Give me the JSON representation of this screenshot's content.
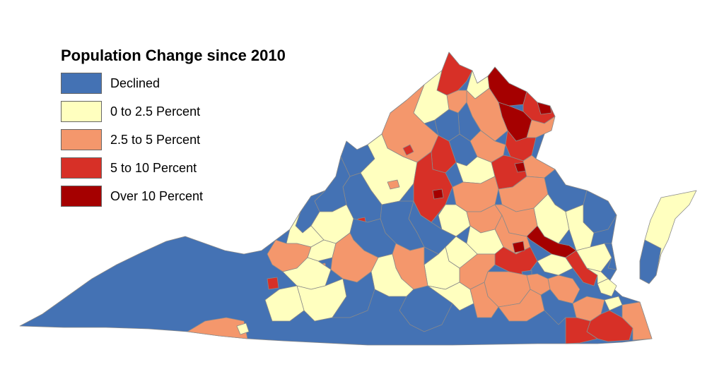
{
  "map": {
    "title": "Population Change since 2010",
    "subject": "Virginia counties and independent cities",
    "legend_placement": "top-left",
    "categories": [
      {
        "id": "declined",
        "label": "Declined",
        "color": "#4472b4"
      },
      {
        "id": "c0_2_5",
        "label": "0 to 2.5 Percent",
        "color": "#ffffbf"
      },
      {
        "id": "c2_5_5",
        "label": "2.5 to 5 Percent",
        "color": "#f4976c"
      },
      {
        "id": "c5_10",
        "label": "5 to 10 Percent",
        "color": "#d73027"
      },
      {
        "id": "over10",
        "label": "Over 10 Percent",
        "color": "#a50000"
      }
    ]
  }
}
